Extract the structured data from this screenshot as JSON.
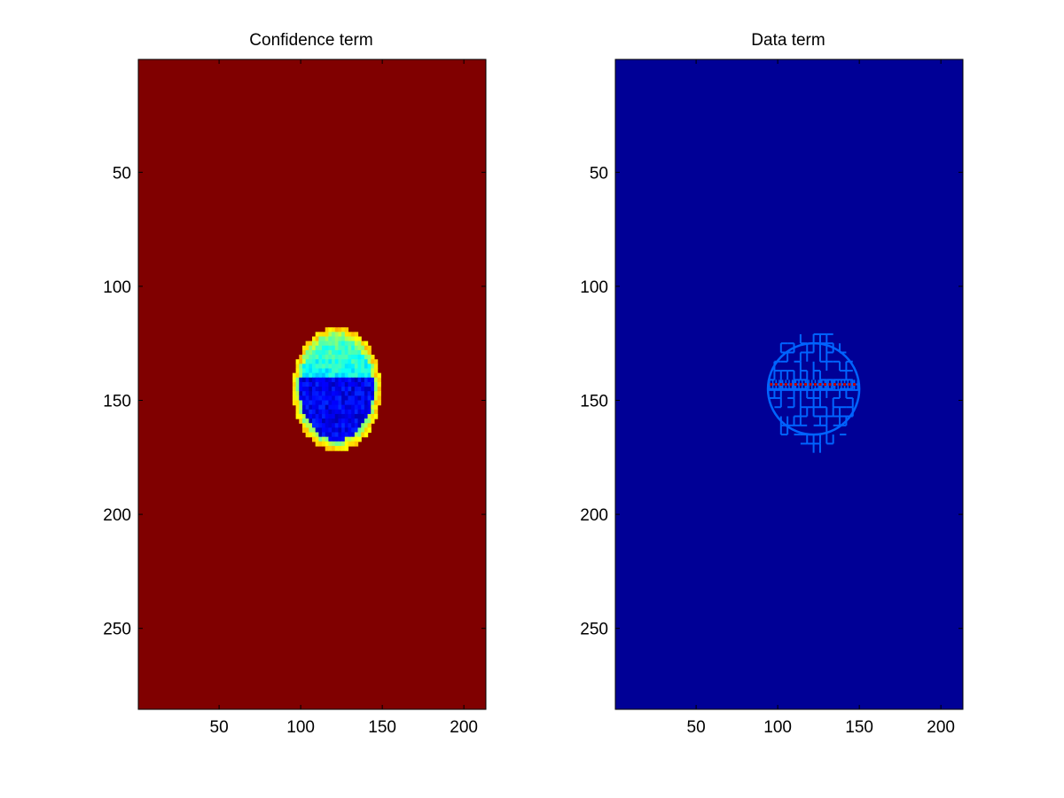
{
  "figure": {
    "background": "#ffffff",
    "colormap": "jet"
  },
  "chart_data": [
    {
      "type": "heatmap",
      "title": "Confidence term",
      "xlabel": "",
      "ylabel": "",
      "xlim": [
        0.5,
        213.5
      ],
      "ylim": [
        0.5,
        285.5
      ],
      "y_reversed": true,
      "xticks": [
        50,
        100,
        150,
        200
      ],
      "yticks": [
        50,
        100,
        150,
        200,
        250
      ],
      "background_value": 1.0,
      "background_color": "#800000",
      "region": {
        "shape": "circle",
        "center": [
          122,
          145
        ],
        "radius": 27,
        "description_levels": {
          "rim": 0.65,
          "upper_band": 0.45,
          "core": 0.1
        }
      },
      "grid": false,
      "legend": "none"
    },
    {
      "type": "heatmap",
      "title": "Data term",
      "xlabel": "",
      "ylabel": "",
      "xlim": [
        0.5,
        213.5
      ],
      "ylim": [
        0.5,
        285.5
      ],
      "y_reversed": true,
      "xticks": [
        50,
        100,
        150,
        200
      ],
      "yticks": [
        50,
        100,
        150,
        200,
        250
      ],
      "background_value": 0.0,
      "background_color": "#000096",
      "region": {
        "shape": "circle",
        "center": [
          122,
          145
        ],
        "radius": 28,
        "pattern": "grid-lines",
        "line_color": "#0064ff",
        "center_row": 143,
        "center_row_color": "#c00000"
      },
      "grid": false,
      "legend": "none"
    }
  ]
}
